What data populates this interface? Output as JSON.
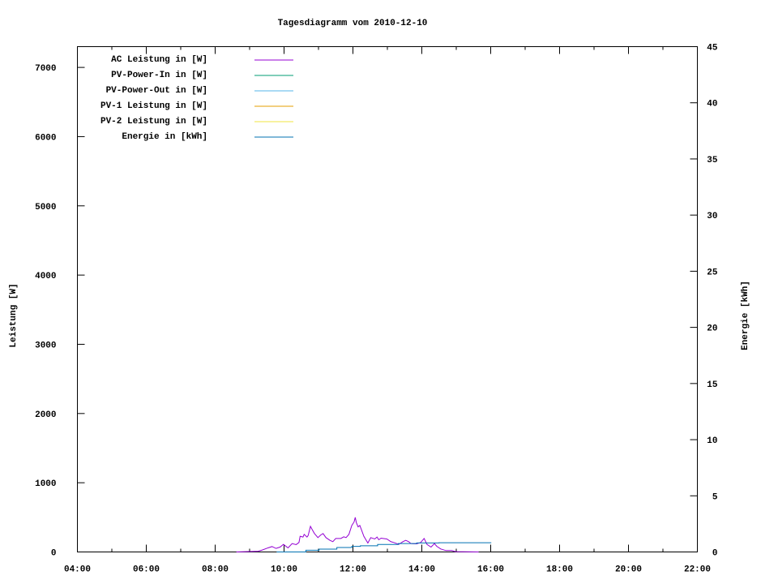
{
  "chart_data": {
    "type": "line",
    "title": "Tagesdiagramm vom 2010-12-10",
    "xlabel": "",
    "ylabel": "Leistung [W]",
    "y2label": "Energie [kWh]",
    "xlim": [
      "04:00",
      "22:00"
    ],
    "ylim": [
      0,
      7300
    ],
    "y2lim": [
      0,
      45
    ],
    "x_ticks": [
      "04:00",
      "06:00",
      "08:00",
      "10:00",
      "12:00",
      "14:00",
      "16:00",
      "18:00",
      "20:00",
      "22:00"
    ],
    "y_ticks": [
      0,
      1000,
      2000,
      3000,
      4000,
      5000,
      6000,
      7000
    ],
    "y2_ticks": [
      0,
      5,
      10,
      15,
      20,
      25,
      30,
      35,
      40,
      45
    ],
    "grid": false,
    "legend_position": "top-left",
    "series": [
      {
        "name": "AC Leistung in [W]",
        "axis": "y",
        "color": "#9400d3",
        "x": [
          "08:37",
          "09:15",
          "09:22",
          "09:32",
          "09:39",
          "09:46",
          "09:53",
          "09:59",
          "10:02",
          "10:07",
          "10:14",
          "10:21",
          "10:26",
          "10:28",
          "10:33",
          "10:35",
          "10:40",
          "10:42",
          "10:46",
          "10:49",
          "10:53",
          "10:59",
          "11:04",
          "11:08",
          "11:13",
          "11:20",
          "11:25",
          "11:30",
          "11:39",
          "11:44",
          "11:48",
          "11:53",
          "11:58",
          "12:02",
          "12:04",
          "12:06",
          "12:09",
          "12:12",
          "12:15",
          "12:19",
          "12:26",
          "12:31",
          "12:38",
          "12:42",
          "12:45",
          "12:49",
          "12:59",
          "13:06",
          "13:11",
          "13:20",
          "13:27",
          "13:32",
          "13:37",
          "13:41",
          "13:51",
          "13:58",
          "14:04",
          "14:09",
          "14:16",
          "14:22",
          "14:26",
          "14:33",
          "14:42",
          "14:52",
          "14:59",
          "15:39"
        ],
        "values": [
          0,
          10,
          28,
          59,
          78,
          51,
          70,
          110,
          90,
          59,
          121,
          106,
          137,
          227,
          215,
          254,
          215,
          238,
          371,
          324,
          266,
          207,
          246,
          266,
          207,
          168,
          149,
          195,
          195,
          219,
          207,
          254,
          383,
          434,
          500,
          422,
          363,
          383,
          317,
          227,
          129,
          207,
          188,
          215,
          176,
          199,
          188,
          149,
          137,
          110,
          149,
          168,
          149,
          121,
          117,
          137,
          195,
          110,
          70,
          121,
          82,
          43,
          20,
          20,
          4,
          0
        ]
      },
      {
        "name": "PV-Power-In in [W]",
        "axis": "y",
        "color": "#009e73",
        "x": [],
        "values": []
      },
      {
        "name": "PV-Power-Out in [W]",
        "axis": "y",
        "color": "#56b4e9",
        "x": [],
        "values": []
      },
      {
        "name": "PV-1 Leistung in [W]",
        "axis": "y",
        "color": "#e69f00",
        "x": [],
        "values": []
      },
      {
        "name": "PV-2 Leistung in [W]",
        "axis": "y",
        "color": "#f0e442",
        "x": [],
        "values": []
      },
      {
        "name": "Energie in [kWh]",
        "axis": "y2",
        "color": "#0072b2",
        "step": true,
        "x": [
          "09:47",
          "10:38",
          "11:01",
          "11:32",
          "11:58",
          "12:13",
          "12:43",
          "13:19",
          "13:51",
          "14:30",
          "16:01"
        ],
        "values": [
          0,
          0.15,
          0.25,
          0.4,
          0.5,
          0.55,
          0.67,
          0.75,
          0.8,
          0.82,
          0.82
        ]
      }
    ]
  }
}
